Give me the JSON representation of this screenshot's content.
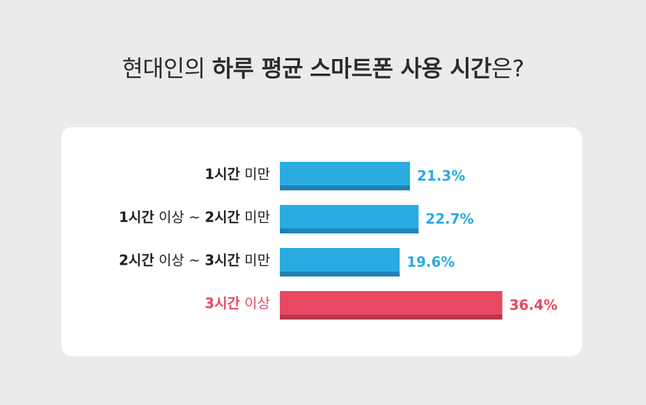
{
  "title": {
    "part1": "현대인의 ",
    "part2": "하루 평균",
    "part3": " ",
    "part4": "스마트폰 사용 시간",
    "part5": "은?"
  },
  "chart_data": {
    "type": "bar",
    "orientation": "horizontal",
    "title": "현대인의 하루 평균 스마트폰 사용 시간은?",
    "value_unit": "%",
    "categories": [
      {
        "bold": "1시간",
        "rest": " 미만"
      },
      {
        "bold": "1시간",
        "rest": " 이상 ~ ",
        "bold2": "2시간",
        "rest2": " 미만"
      },
      {
        "bold": "2시간",
        "rest": " 이상 ~ ",
        "bold2": "3시간",
        "rest2": " 미만"
      },
      {
        "bold": "3시간",
        "rest": " 이상"
      }
    ],
    "category_text": [
      "1시간 미만",
      "1시간 이상 ~ 2시간 미만",
      "2시간 이상 ~ 3시간 미만",
      "3시간 이상"
    ],
    "values": [
      21.3,
      22.7,
      19.6,
      36.4
    ],
    "value_labels": [
      "21.3%",
      "22.7%",
      "19.6%",
      "36.4%"
    ],
    "highlight_index": 3,
    "colors": {
      "bar": "#2aabe2",
      "bar_shadow": "#1d83b5",
      "bar_highlight": "#e84962",
      "bar_highlight_shadow": "#b7374c",
      "label": "#1e1e1e",
      "label_highlight": "#e84962",
      "value": "#2aabe2",
      "value_highlight": "#e84962"
    },
    "xlim": [
      0,
      40
    ],
    "grid": false,
    "legend": "none"
  }
}
